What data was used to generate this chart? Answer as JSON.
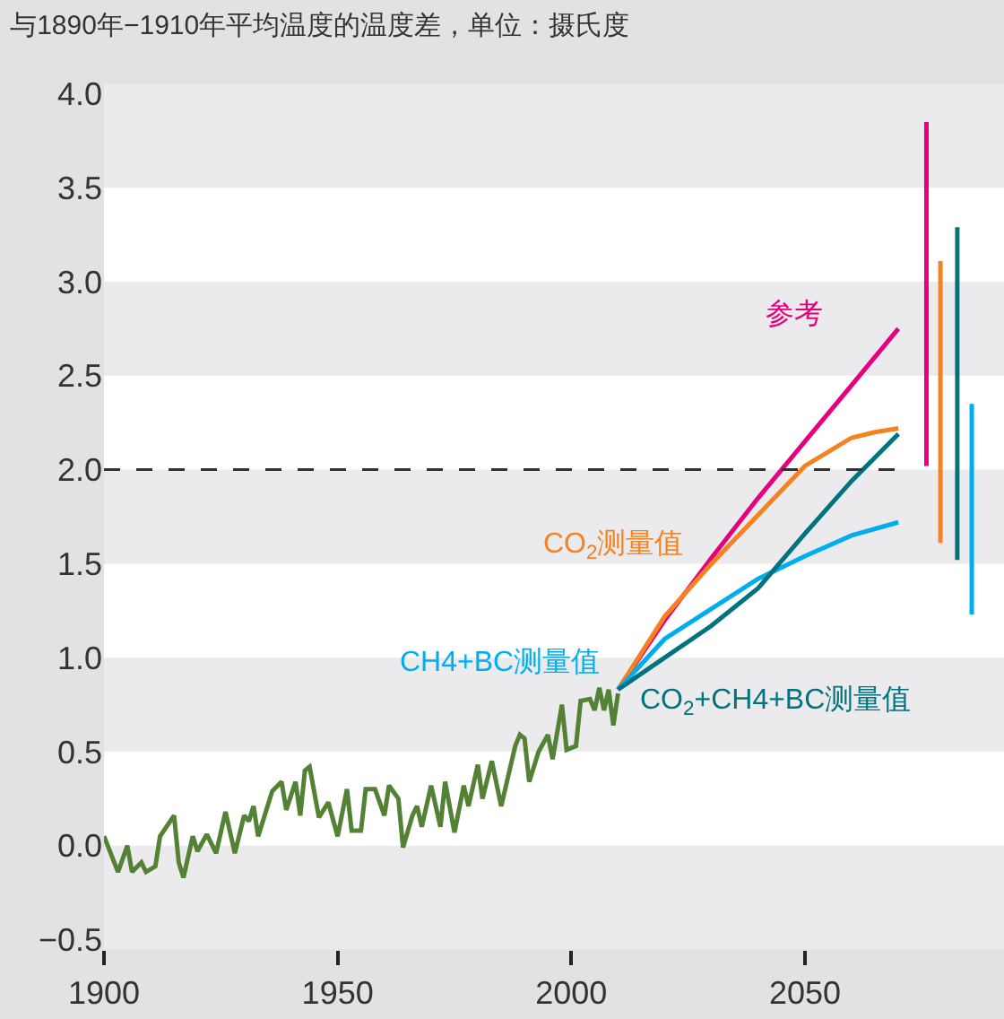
{
  "chart_data": {
    "type": "line",
    "title": "与1890年−1910年平均温度的温度差，单位：摄氏度",
    "xlim": [
      1900,
      2092.6
    ],
    "xticks": [
      1900,
      1950,
      2000,
      2050
    ],
    "ylim": [
      -0.55,
      4.05
    ],
    "yticks": [
      {
        "value": -0.5,
        "label": "−0.5"
      },
      {
        "value": 0,
        "label": "0.0"
      },
      {
        "value": 0.5,
        "label": "0.5"
      },
      {
        "value": 1,
        "label": "1.0"
      },
      {
        "value": 1.5,
        "label": "1.5"
      },
      {
        "value": 2,
        "label": "2.0"
      },
      {
        "value": 2.5,
        "label": "2.5"
      },
      {
        "value": 3,
        "label": "3.0"
      },
      {
        "value": 3.5,
        "label": "3.5"
      },
      {
        "value": 4,
        "label": "4.0"
      }
    ],
    "grid": false,
    "legend": false,
    "marker": "none",
    "bands": [
      {
        "axis": "y",
        "from": -0.55,
        "to": 0,
        "color": "#ebebee"
      },
      {
        "axis": "y",
        "from": 0.5,
        "to": 1,
        "color": "#ebebee"
      },
      {
        "axis": "y",
        "from": 1.5,
        "to": 2,
        "color": "#ebebee"
      },
      {
        "axis": "y",
        "from": 2.5,
        "to": 3,
        "color": "#ebebee"
      },
      {
        "axis": "y",
        "from": 3.5,
        "to": 4.05,
        "color": "#ebebee"
      }
    ],
    "ref_lines": [
      {
        "axis": "y",
        "value": 2.0,
        "color": "#333333",
        "line_style": "dashed"
      }
    ],
    "series": [
      {
        "color": "#548235",
        "x": [
          1900,
          1903,
          1905,
          1906,
          1908,
          1909,
          1911,
          1912,
          1915,
          1916,
          1917,
          1919,
          1920,
          1922,
          1924,
          1926,
          1928,
          1930,
          1931,
          1932,
          1933,
          1936,
          1938,
          1939,
          1941,
          1942,
          1943,
          1944,
          1946,
          1948,
          1950,
          1952,
          1953,
          1955,
          1956,
          1958,
          1960,
          1961,
          1963,
          1964,
          1966,
          1967,
          1968,
          1970,
          1972,
          1973,
          1975,
          1977,
          1978,
          1980,
          1981,
          1983,
          1985,
          1988,
          1989,
          1990,
          1991,
          1993,
          1995,
          1996,
          1998,
          1999,
          2001,
          2002,
          2004,
          2005,
          2006,
          2007,
          2008,
          2009,
          2010
        ],
        "values": [
          0.05,
          -0.14,
          0.0,
          -0.14,
          -0.09,
          -0.14,
          -0.11,
          0.05,
          0.16,
          -0.09,
          -0.17,
          0.05,
          -0.03,
          0.06,
          -0.04,
          0.18,
          -0.04,
          0.16,
          0.13,
          0.21,
          0.05,
          0.29,
          0.34,
          0.19,
          0.34,
          0.16,
          0.4,
          0.42,
          0.15,
          0.23,
          0.05,
          0.3,
          0.08,
          0.08,
          0.3,
          0.3,
          0.16,
          0.32,
          0.25,
          -0.01,
          0.16,
          0.21,
          0.1,
          0.32,
          0.1,
          0.34,
          0.07,
          0.32,
          0.21,
          0.43,
          0.25,
          0.45,
          0.21,
          0.53,
          0.59,
          0.57,
          0.34,
          0.5,
          0.59,
          0.46,
          0.75,
          0.51,
          0.53,
          0.77,
          0.78,
          0.72,
          0.84,
          0.72,
          0.83,
          0.64,
          0.81
        ]
      },
      {
        "name": "参考",
        "color": "#e6007e",
        "x": [
          2010,
          2020,
          2030,
          2040,
          2050,
          2060,
          2070
        ],
        "values": [
          0.83,
          1.2,
          1.53,
          1.85,
          2.15,
          2.45,
          2.75
        ]
      },
      {
        "name": "CO$_{2}$测量值",
        "color": "#f58220",
        "x": [
          2010,
          2020,
          2030,
          2040,
          2050,
          2060,
          2065,
          2070
        ],
        "values": [
          0.83,
          1.22,
          1.5,
          1.76,
          2.02,
          2.17,
          2.2,
          2.22
        ]
      },
      {
        "name": "CH4+BC测量值",
        "color": "#00aeef",
        "x": [
          2010,
          2020,
          2030,
          2040,
          2050,
          2060,
          2070
        ],
        "values": [
          0.83,
          1.1,
          1.26,
          1.42,
          1.54,
          1.65,
          1.72
        ]
      },
      {
        "name": "CO$_{2}$+CH4+BC测量值",
        "color": "#00737f",
        "x": [
          2010,
          2020,
          2030,
          2040,
          2050,
          2060,
          2070
        ],
        "values": [
          0.83,
          1.0,
          1.17,
          1.37,
          1.66,
          1.94,
          2.19
        ]
      },
      {
        "color": "#e6007e",
        "x": [
          2076,
          2076
        ],
        "values": [
          3.85,
          2.02
        ]
      },
      {
        "color": "#f58220",
        "x": [
          2079,
          2079
        ],
        "values": [
          3.11,
          1.61
        ]
      },
      {
        "color": "#00737f",
        "x": [
          2082.6,
          2082.6
        ],
        "values": [
          3.29,
          1.52
        ]
      },
      {
        "color": "#00aeef",
        "x": [
          2085.7,
          2085.7
        ],
        "values": [
          2.35,
          1.23
        ]
      }
    ]
  }
}
